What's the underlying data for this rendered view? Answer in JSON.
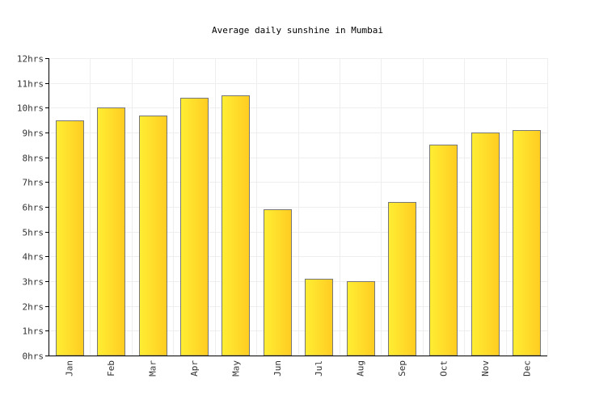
{
  "chart_data": {
    "type": "bar",
    "title": "Average daily sunshine in Mumbai",
    "xlabel": "",
    "ylabel": "",
    "categories": [
      "Jan",
      "Feb",
      "Mar",
      "Apr",
      "May",
      "Jun",
      "Jul",
      "Aug",
      "Sep",
      "Oct",
      "Nov",
      "Dec"
    ],
    "values": [
      9.5,
      10.0,
      9.7,
      10.4,
      10.5,
      5.9,
      3.1,
      3.0,
      6.2,
      8.5,
      9.0,
      9.1
    ],
    "ylim": [
      0,
      12
    ],
    "yticks": [
      "0hrs",
      "1hrs",
      "2hrs",
      "3hrs",
      "4hrs",
      "5hrs",
      "6hrs",
      "7hrs",
      "8hrs",
      "9hrs",
      "10hrs",
      "11hrs",
      "12hrs"
    ],
    "grid": true,
    "legend": "none",
    "bar_color_start": "#ffee33",
    "bar_color_end": "#ffcc22",
    "bar_stroke": "#777777"
  }
}
